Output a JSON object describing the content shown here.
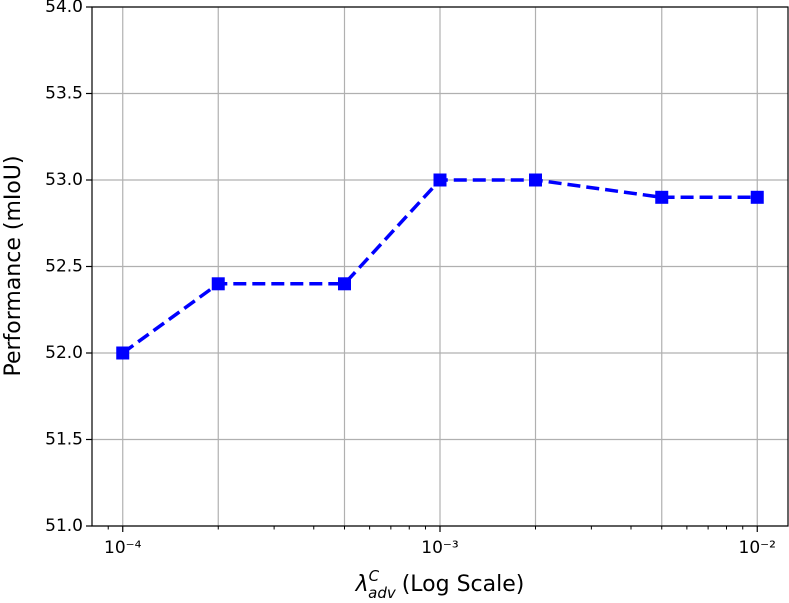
{
  "chart_data": {
    "type": "line",
    "x": [
      0.0001,
      0.0002,
      0.0005,
      0.001,
      0.002,
      0.005,
      0.01
    ],
    "values": [
      52.0,
      52.4,
      52.4,
      53.0,
      53.0,
      52.9,
      52.9
    ],
    "color": "#0000ff",
    "line_style": "dashed",
    "marker": "square",
    "xscale": "log",
    "grid": true,
    "xlim": [
      8e-05,
      0.0125
    ],
    "ylim": [
      51.0,
      54.0
    ],
    "xticks": [
      {
        "value": 0.0001,
        "label": "10⁻⁴"
      },
      {
        "value": 0.001,
        "label": "10⁻³"
      },
      {
        "value": 0.01,
        "label": "10⁻²"
      }
    ],
    "xminor_ticks": [
      9e-05,
      0.0002,
      0.0003,
      0.0004,
      0.0005,
      0.0006,
      0.0007,
      0.0008,
      0.0009,
      0.002,
      0.003,
      0.004,
      0.005,
      0.006,
      0.007,
      0.008,
      0.009
    ],
    "yticks": [
      {
        "value": 51.0,
        "label": "51.0"
      },
      51.5,
      {
        "value": 52.0,
        "label": "52.0"
      },
      52.5,
      {
        "value": 53.0,
        "label": "53.0"
      },
      53.5,
      {
        "value": 54.0,
        "label": "54.0"
      }
    ],
    "xlabel_symbol": "λ",
    "xlabel_sup": "C",
    "xlabel_sub": "adv",
    "xlabel_text": "(Log Scale)",
    "ylabel": "Performance (mIoU)"
  }
}
